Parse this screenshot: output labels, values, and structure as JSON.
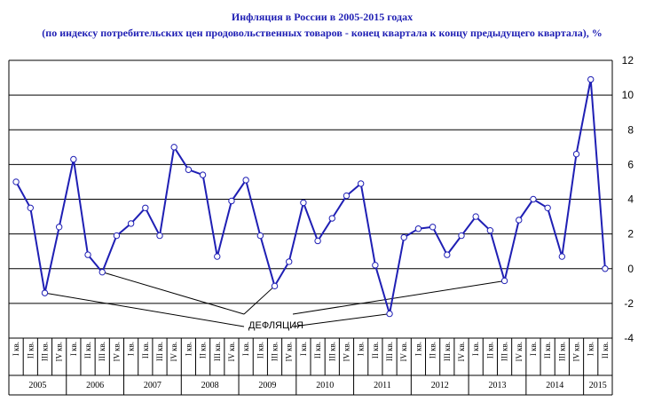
{
  "chart_data": {
    "type": "line",
    "title": "Инфляция в России в 2005-2015 годах",
    "subtitle": "(по индексу потребительских цен продовольственных товаров - конец квартала к концу предыдущего квартала), %",
    "ylim": [
      -4,
      12
    ],
    "yticks": [
      "-4",
      "-2",
      "0",
      "2",
      "4",
      "6",
      "8",
      "10",
      "12"
    ],
    "grid": true,
    "quarter_labels": [
      "I кв.",
      "II кв.",
      "III кв.",
      "IV кв."
    ],
    "years": [
      "2005",
      "2006",
      "2007",
      "2008",
      "2009",
      "2010",
      "2011",
      "2012",
      "2013",
      "2014",
      "2015"
    ],
    "quarters_2015": 2,
    "series": [
      {
        "color": "#1f1fb4",
        "values": [
          5.0,
          3.5,
          -1.4,
          2.4,
          6.3,
          0.8,
          -0.2,
          1.9,
          2.6,
          3.5,
          1.9,
          7.0,
          5.7,
          5.4,
          0.7,
          3.9,
          5.1,
          1.9,
          -1.0,
          0.4,
          3.8,
          1.6,
          2.9,
          4.2,
          4.9,
          0.2,
          -2.6,
          1.8,
          2.3,
          2.4,
          0.8,
          1.9,
          3.0,
          2.2,
          -0.7,
          2.8,
          4.0,
          3.5,
          0.7,
          6.6,
          10.9,
          0.0
        ]
      }
    ],
    "annotation": {
      "text": "ДЕФЛЯЦИЯ",
      "targets": [
        2,
        6,
        18,
        26,
        34
      ]
    }
  }
}
